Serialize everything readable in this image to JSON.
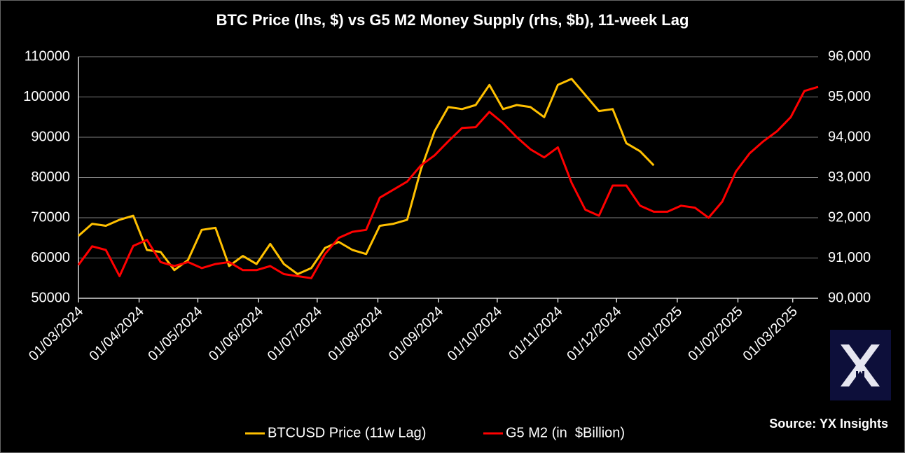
{
  "chart_data": {
    "type": "line",
    "title": "BTC Price (lhs, $) vs G5 M2 Money Supply (rhs, $b), 11-week Lag",
    "source": "Source: YX Insights",
    "x": [
      "2024-03-01",
      "2024-03-08",
      "2024-03-15",
      "2024-03-22",
      "2024-03-29",
      "2024-04-05",
      "2024-04-12",
      "2024-04-19",
      "2024-04-26",
      "2024-05-03",
      "2024-05-10",
      "2024-05-17",
      "2024-05-24",
      "2024-05-31",
      "2024-06-07",
      "2024-06-14",
      "2024-06-21",
      "2024-06-28",
      "2024-07-05",
      "2024-07-12",
      "2024-07-19",
      "2024-07-26",
      "2024-08-02",
      "2024-08-09",
      "2024-08-16",
      "2024-08-23",
      "2024-08-30",
      "2024-09-06",
      "2024-09-13",
      "2024-09-20",
      "2024-09-27",
      "2024-10-04",
      "2024-10-11",
      "2024-10-18",
      "2024-10-25",
      "2024-11-01",
      "2024-11-08",
      "2024-11-15",
      "2024-11-22",
      "2024-11-29",
      "2024-12-06",
      "2024-12-13",
      "2024-12-20",
      "2024-12-27",
      "2025-01-03",
      "2025-01-10",
      "2025-01-17",
      "2025-01-24",
      "2025-01-31",
      "2025-02-07",
      "2025-02-14",
      "2025-02-21",
      "2025-02-28",
      "2025-03-07",
      "2025-03-14"
    ],
    "series": [
      {
        "name": "BTCUSD Price (11w Lag)",
        "color": "#ffc000",
        "values": [
          65500,
          68500,
          68000,
          69500,
          70500,
          62000,
          61500,
          57000,
          59500,
          67000,
          67500,
          58000,
          60500,
          58500,
          63500,
          58500,
          56000,
          57500,
          62500,
          64000,
          62000,
          61000,
          68000,
          68500,
          69500,
          82000,
          91500,
          97500,
          97000,
          98000,
          103000,
          97000,
          98000,
          97500,
          95000,
          103000,
          104500,
          100500,
          96500,
          97000,
          88500,
          86500,
          83000,
          null,
          null,
          null,
          null,
          null,
          null,
          null,
          null,
          null,
          null,
          null,
          null
        ]
      },
      {
        "name": "G5 M2 (in  $Billion)",
        "color": "#ff0000",
        "axis": "y2",
        "values": [
          90830,
          91290,
          91200,
          90550,
          91300,
          91450,
          90900,
          90800,
          90900,
          90750,
          90850,
          90900,
          90700,
          90700,
          90800,
          90600,
          90550,
          90500,
          91100,
          91500,
          91650,
          91700,
          92500,
          92700,
          92900,
          93300,
          93550,
          93900,
          94230,
          94250,
          94630,
          94350,
          94000,
          93700,
          93500,
          93750,
          92870,
          92200,
          92050,
          92800,
          92800,
          92300,
          92150,
          92150,
          92300,
          92250,
          92000,
          92400,
          93150,
          93600,
          93900,
          94150,
          94500,
          95150,
          95250
        ]
      }
    ],
    "xlim": [
      "2024-03-01",
      "2025-03-14"
    ],
    "xticks": [
      {
        "value": "2024-03-01",
        "label": "01/03/2024"
      },
      {
        "value": "2024-04-01",
        "label": "01/04/2024"
      },
      {
        "value": "2024-05-01",
        "label": "01/05/2024"
      },
      {
        "value": "2024-06-01",
        "label": "01/06/2024"
      },
      {
        "value": "2024-07-01",
        "label": "01/07/2024"
      },
      {
        "value": "2024-08-01",
        "label": "01/08/2024"
      },
      {
        "value": "2024-09-01",
        "label": "01/09/2024"
      },
      {
        "value": "2024-10-01",
        "label": "01/10/2024"
      },
      {
        "value": "2024-11-01",
        "label": "01/11/2024"
      },
      {
        "value": "2024-12-01",
        "label": "01/12/2024"
      },
      {
        "value": "2025-01-01",
        "label": "01/01/2025"
      },
      {
        "value": "2025-02-01",
        "label": "01/02/2025"
      },
      {
        "value": "2025-03-01",
        "label": "01/03/2025"
      }
    ],
    "ylim": [
      50000,
      110000
    ],
    "yticks": [
      50000,
      60000,
      70000,
      80000,
      90000,
      100000,
      110000
    ],
    "y2lim": [
      90000,
      96000
    ],
    "y2ticks": [
      {
        "value": 90000,
        "label": "90,000"
      },
      {
        "value": 91000,
        "label": "91,000"
      },
      {
        "value": 92000,
        "label": "92,000"
      },
      {
        "value": 93000,
        "label": "93,000"
      },
      {
        "value": 94000,
        "label": "94,000"
      },
      {
        "value": 95000,
        "label": "95,000"
      },
      {
        "value": 96000,
        "label": "96,000"
      }
    ],
    "grid": true,
    "legend": "bottom"
  }
}
